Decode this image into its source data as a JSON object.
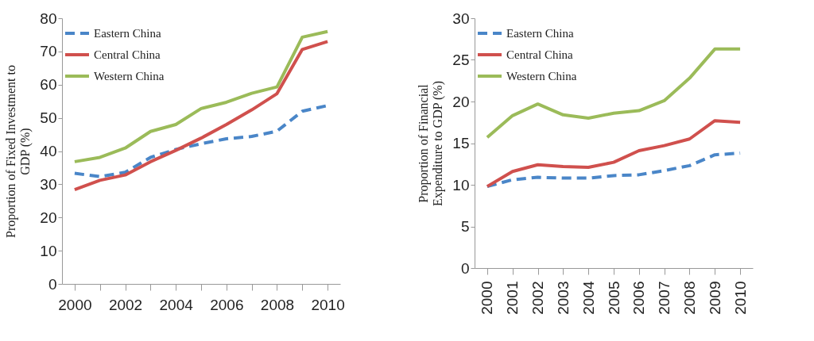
{
  "chart_data": [
    {
      "type": "line",
      "ylabel": "Proportion of Fixed Investment to\nGDP (%)",
      "categories": [
        "2000",
        null,
        "2002",
        null,
        "2004",
        null,
        "2006",
        null,
        "2008",
        null,
        "2010"
      ],
      "ylim": [
        0,
        80
      ],
      "yticks": [
        0,
        10,
        20,
        30,
        40,
        50,
        60,
        70,
        80
      ],
      "legend": "top left",
      "series": [
        {
          "name": "Eastern China",
          "color": "#4a86c8",
          "line_style": "dashed",
          "values": [
            33.3,
            32.3,
            33.6,
            38.1,
            40.5,
            42.2,
            43.7,
            44.4,
            46,
            52,
            53.7
          ]
        },
        {
          "name": "Central China",
          "color": "#d0504d",
          "values": [
            28.4,
            31.2,
            32.8,
            36.8,
            40.2,
            43.9,
            48,
            52.4,
            57.3,
            70.6,
            73
          ]
        },
        {
          "name": "Western China",
          "color": "#9bbb59",
          "values": [
            36.8,
            38.1,
            40.9,
            45.9,
            48,
            52.8,
            54.7,
            57.4,
            59.3,
            74.3,
            76
          ]
        }
      ]
    },
    {
      "type": "line",
      "ylabel": "Proportion of Financial\nExpenditure to GDP (%)",
      "categories": [
        "2000",
        "2001",
        "2002",
        "2003",
        "2004",
        "2005",
        "2006",
        "2007",
        "2008",
        "2009",
        "2010"
      ],
      "ylim": [
        0,
        30
      ],
      "yticks": [
        0,
        5,
        10,
        15,
        20,
        25,
        30
      ],
      "legend": "top left",
      "series": [
        {
          "name": "Eastern China",
          "color": "#4a86c8",
          "line_style": "dashed",
          "values": [
            9.8,
            10.6,
            10.9,
            10.8,
            10.8,
            11.1,
            11.2,
            11.7,
            12.3,
            13.6,
            13.8
          ]
        },
        {
          "name": "Central China",
          "color": "#d0504d",
          "values": [
            9.8,
            11.6,
            12.4,
            12.2,
            12.1,
            12.7,
            14.1,
            14.7,
            15.5,
            17.7,
            17.5
          ]
        },
        {
          "name": "Western China",
          "color": "#9bbb59",
          "values": [
            15.7,
            18.3,
            19.7,
            18.4,
            18.0,
            18.6,
            18.9,
            20.1,
            22.8,
            26.3,
            26.3
          ]
        }
      ]
    }
  ]
}
